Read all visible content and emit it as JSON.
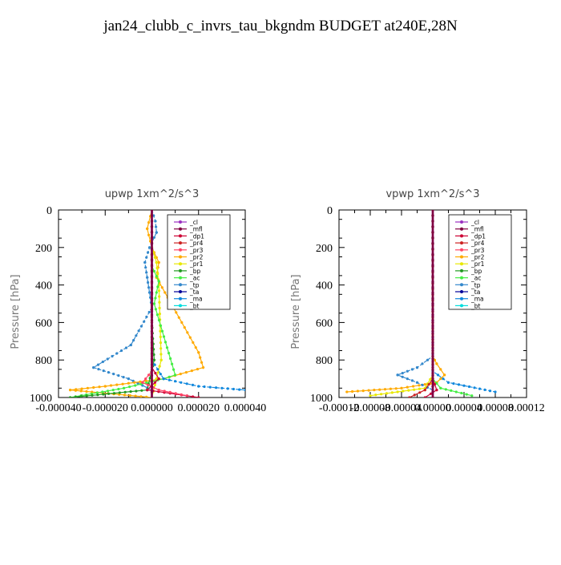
{
  "title": "jan24_clubb_c_invrs_tau_bkgndm  BUDGET at240E,28N",
  "legend_entries": [
    "_cl",
    "_mfl",
    "_dp1",
    "_pr4",
    "_pr3",
    "_pr2",
    "_pr1",
    "_bp",
    "_ac",
    "_tp",
    "_ta",
    "_ma",
    "_bt"
  ],
  "colors": {
    "_cl": "#9b30c0",
    "_mfl": "#800040",
    "_dp1": "#cc0033",
    "_pr4": "#cc2222",
    "_pr3": "#ff4466",
    "_pr2": "#ffaa00",
    "_pr1": "#e8e800",
    "_bp": "#229922",
    "_ac": "#44ee44",
    "_tp": "#3388cc",
    "_ta": "#000099",
    "_ma": "#1188dd",
    "_bt": "#00dddd"
  },
  "chart_data": [
    {
      "type": "line",
      "title": "upwp   1xm^2/s^3",
      "ylabel": "Pressure [hPa]",
      "xlabel": "",
      "ylim": [
        1000,
        0
      ],
      "xlim": [
        -4e-05,
        4e-05
      ],
      "y_ticks": [
        0,
        200,
        400,
        600,
        800,
        1000
      ],
      "y_tick_labels": [
        "0",
        "200",
        "400",
        "600",
        "800",
        "1000"
      ],
      "x_ticks": [
        -4e-05,
        -2e-05,
        0,
        2e-05,
        4e-05
      ],
      "x_tick_labels": [
        "-0.000040",
        "-0.000020",
        "0.000000",
        "0.000020",
        "0.000040"
      ],
      "legend_position": "top-right",
      "series": [
        {
          "name": "_tp",
          "x": [
            0,
            1.5e-06,
            2e-06,
            -1e-06,
            -3e-06,
            -2e-06,
            -1e-06,
            0,
            -9e-06,
            -2.5e-05,
            -1e-05,
            0,
            0
          ],
          "y": [
            0,
            60,
            120,
            200,
            280,
            360,
            440,
            520,
            720,
            840,
            900,
            960,
            1000
          ]
        },
        {
          "name": "_pr2",
          "x": [
            0,
            -2e-06,
            0,
            3e-06,
            2e-06,
            2e-05,
            2.2e-05,
            5e-06,
            -2e-05,
            -3.5e-05,
            0
          ],
          "y": [
            0,
            100,
            200,
            280,
            360,
            760,
            840,
            900,
            940,
            960,
            1000
          ]
        },
        {
          "name": "_pr1",
          "x": [
            0,
            0,
            2e-06,
            3e-06,
            4e-06,
            2e-06,
            0
          ],
          "y": [
            0,
            200,
            280,
            400,
            800,
            900,
            1000
          ]
        },
        {
          "name": "_ac",
          "x": [
            0,
            0,
            3e-06,
            1e-06,
            1e-05,
            5e-06,
            -1.2e-05,
            -3.5e-05
          ],
          "y": [
            0,
            300,
            380,
            500,
            880,
            900,
            950,
            1000
          ]
        },
        {
          "name": "_bp",
          "x": [
            0,
            0,
            1e-06,
            -2e-06,
            -3.5e-05
          ],
          "y": [
            0,
            600,
            800,
            960,
            1000
          ]
        },
        {
          "name": "_ma",
          "x": [
            0,
            0,
            5e-06,
            2e-05,
            4e-05
          ],
          "y": [
            0,
            800,
            900,
            940,
            960
          ]
        },
        {
          "name": "_dp1",
          "x": [
            0,
            0,
            3e-06,
            -2e-06,
            2e-05
          ],
          "y": [
            0,
            840,
            900,
            960,
            1000
          ]
        },
        {
          "name": "_pr3",
          "x": [
            0,
            0,
            -4e-06,
            3e-06,
            1.5e-05
          ],
          "y": [
            0,
            860,
            920,
            960,
            990
          ]
        },
        {
          "name": "_cl",
          "x": [
            0,
            0,
            0
          ],
          "y": [
            0,
            500,
            1000
          ]
        },
        {
          "name": "_mfl",
          "x": [
            0,
            0,
            0
          ],
          "y": [
            0,
            500,
            1000
          ]
        }
      ]
    },
    {
      "type": "line",
      "title": "vpwp   1xm^2/s^3",
      "ylabel": "Pressure [hPa]",
      "xlabel": "",
      "ylim": [
        1000,
        0
      ],
      "xlim": [
        -0.00012,
        0.00012
      ],
      "y_ticks": [
        0,
        200,
        400,
        600,
        800,
        1000
      ],
      "y_tick_labels": [
        "0",
        "200",
        "400",
        "600",
        "800",
        "1000"
      ],
      "x_ticks": [
        -0.00012,
        -8e-05,
        -4e-05,
        0,
        4e-05,
        8e-05,
        0.00012
      ],
      "x_tick_labels": [
        "-0.00012",
        "-0.00008",
        "-0.00004",
        "0.00000",
        "0.00004",
        "0.00008",
        "0.00012"
      ],
      "legend_position": "top-right",
      "series": [
        {
          "name": "_pr2",
          "x": [
            0,
            0,
            5e-06,
            1.5e-05,
            5e-06,
            -4e-05,
            -0.00011
          ],
          "y": [
            0,
            780,
            820,
            880,
            920,
            950,
            970
          ]
        },
        {
          "name": "_tp",
          "x": [
            0,
            0,
            -2e-05,
            -4.5e-05,
            -2e-05,
            0
          ],
          "y": [
            0,
            780,
            840,
            880,
            920,
            960
          ]
        },
        {
          "name": "_ma",
          "x": [
            0,
            0,
            2e-05,
            8e-05
          ],
          "y": [
            0,
            860,
            920,
            970
          ]
        },
        {
          "name": "_ac",
          "x": [
            0,
            0,
            1e-05,
            5e-05
          ],
          "y": [
            0,
            900,
            950,
            990
          ]
        },
        {
          "name": "_pr1",
          "x": [
            0,
            0,
            -1e-05,
            -8e-05
          ],
          "y": [
            0,
            880,
            950,
            990
          ]
        },
        {
          "name": "_pr4",
          "x": [
            0,
            0,
            -1e-05,
            -3e-05
          ],
          "y": [
            0,
            900,
            960,
            1000
          ]
        },
        {
          "name": "_dp1",
          "x": [
            0,
            0,
            5e-06,
            -1e-05
          ],
          "y": [
            0,
            900,
            960,
            1000
          ]
        },
        {
          "name": "_cl",
          "x": [
            0,
            0,
            0
          ],
          "y": [
            0,
            500,
            1000
          ]
        },
        {
          "name": "_mfl",
          "x": [
            0,
            0,
            0
          ],
          "y": [
            0,
            500,
            1000
          ]
        }
      ]
    }
  ]
}
